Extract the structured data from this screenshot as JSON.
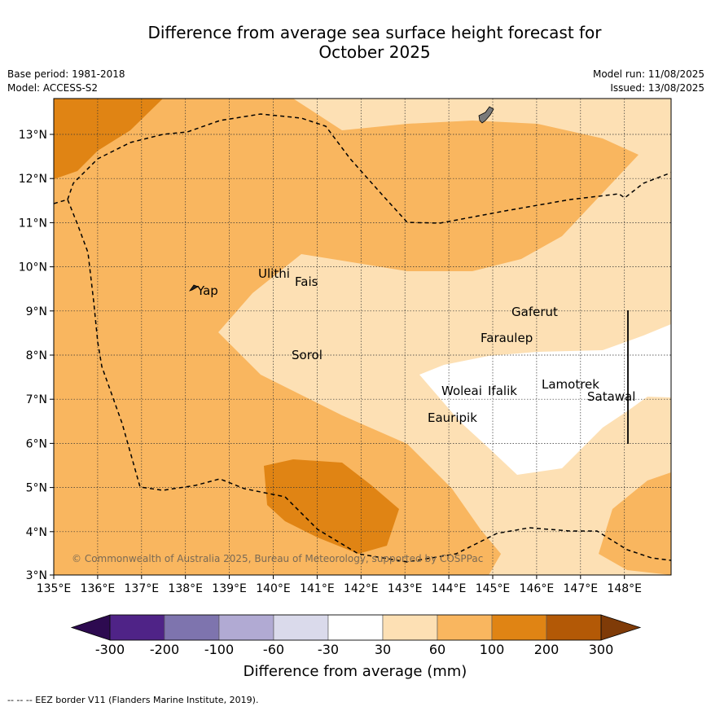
{
  "title": {
    "line1": "Difference from average sea surface height forecast for",
    "line2": "October 2025"
  },
  "meta": {
    "base_period": "Base period: 1981-2018",
    "model": "Model: ACCESS-S2",
    "model_run": "Model run: 11/08/2025",
    "issued": "Issued: 13/08/2025"
  },
  "map": {
    "lat_labels": [
      "13°N",
      "12°N",
      "11°N",
      "10°N",
      "9°N",
      "8°N",
      "7°N",
      "6°N",
      "5°N",
      "4°N",
      "3°N"
    ],
    "lon_labels": [
      "135°E",
      "136°E",
      "137°E",
      "138°E",
      "139°E",
      "140°E",
      "141°E",
      "142°E",
      "143°E",
      "144°E",
      "145°E",
      "146°E",
      "147°E",
      "148°E"
    ],
    "places": [
      "Yap",
      "Ulithi",
      "Fais",
      "Sorol",
      "Gaferut",
      "Faraulep",
      "Lamotrek",
      "Woleai",
      "Ifalik",
      "Satawal",
      "Eauripik"
    ],
    "copyright": "© Commonwealth of Australia 2025, Bureau of Meteorology, supported by COSPPac"
  },
  "colorbar": {
    "ticks": [
      "-300",
      "-200",
      "-100",
      "-60",
      "-30",
      "30",
      "60",
      "100",
      "200",
      "300"
    ],
    "colors": [
      "#4f2387",
      "#7e74ae",
      "#b1aad3",
      "#dadaeb",
      "#ffffff",
      "#fde0b4",
      "#f9b65f",
      "#e08414",
      "#b35906"
    ],
    "under_color": "#2d0a50",
    "over_color": "#7f3b08",
    "label": "Difference from average (mm)"
  },
  "footnote": "--  --  -- EEZ border V11 (Flanders Marine Institute, 2019)."
}
